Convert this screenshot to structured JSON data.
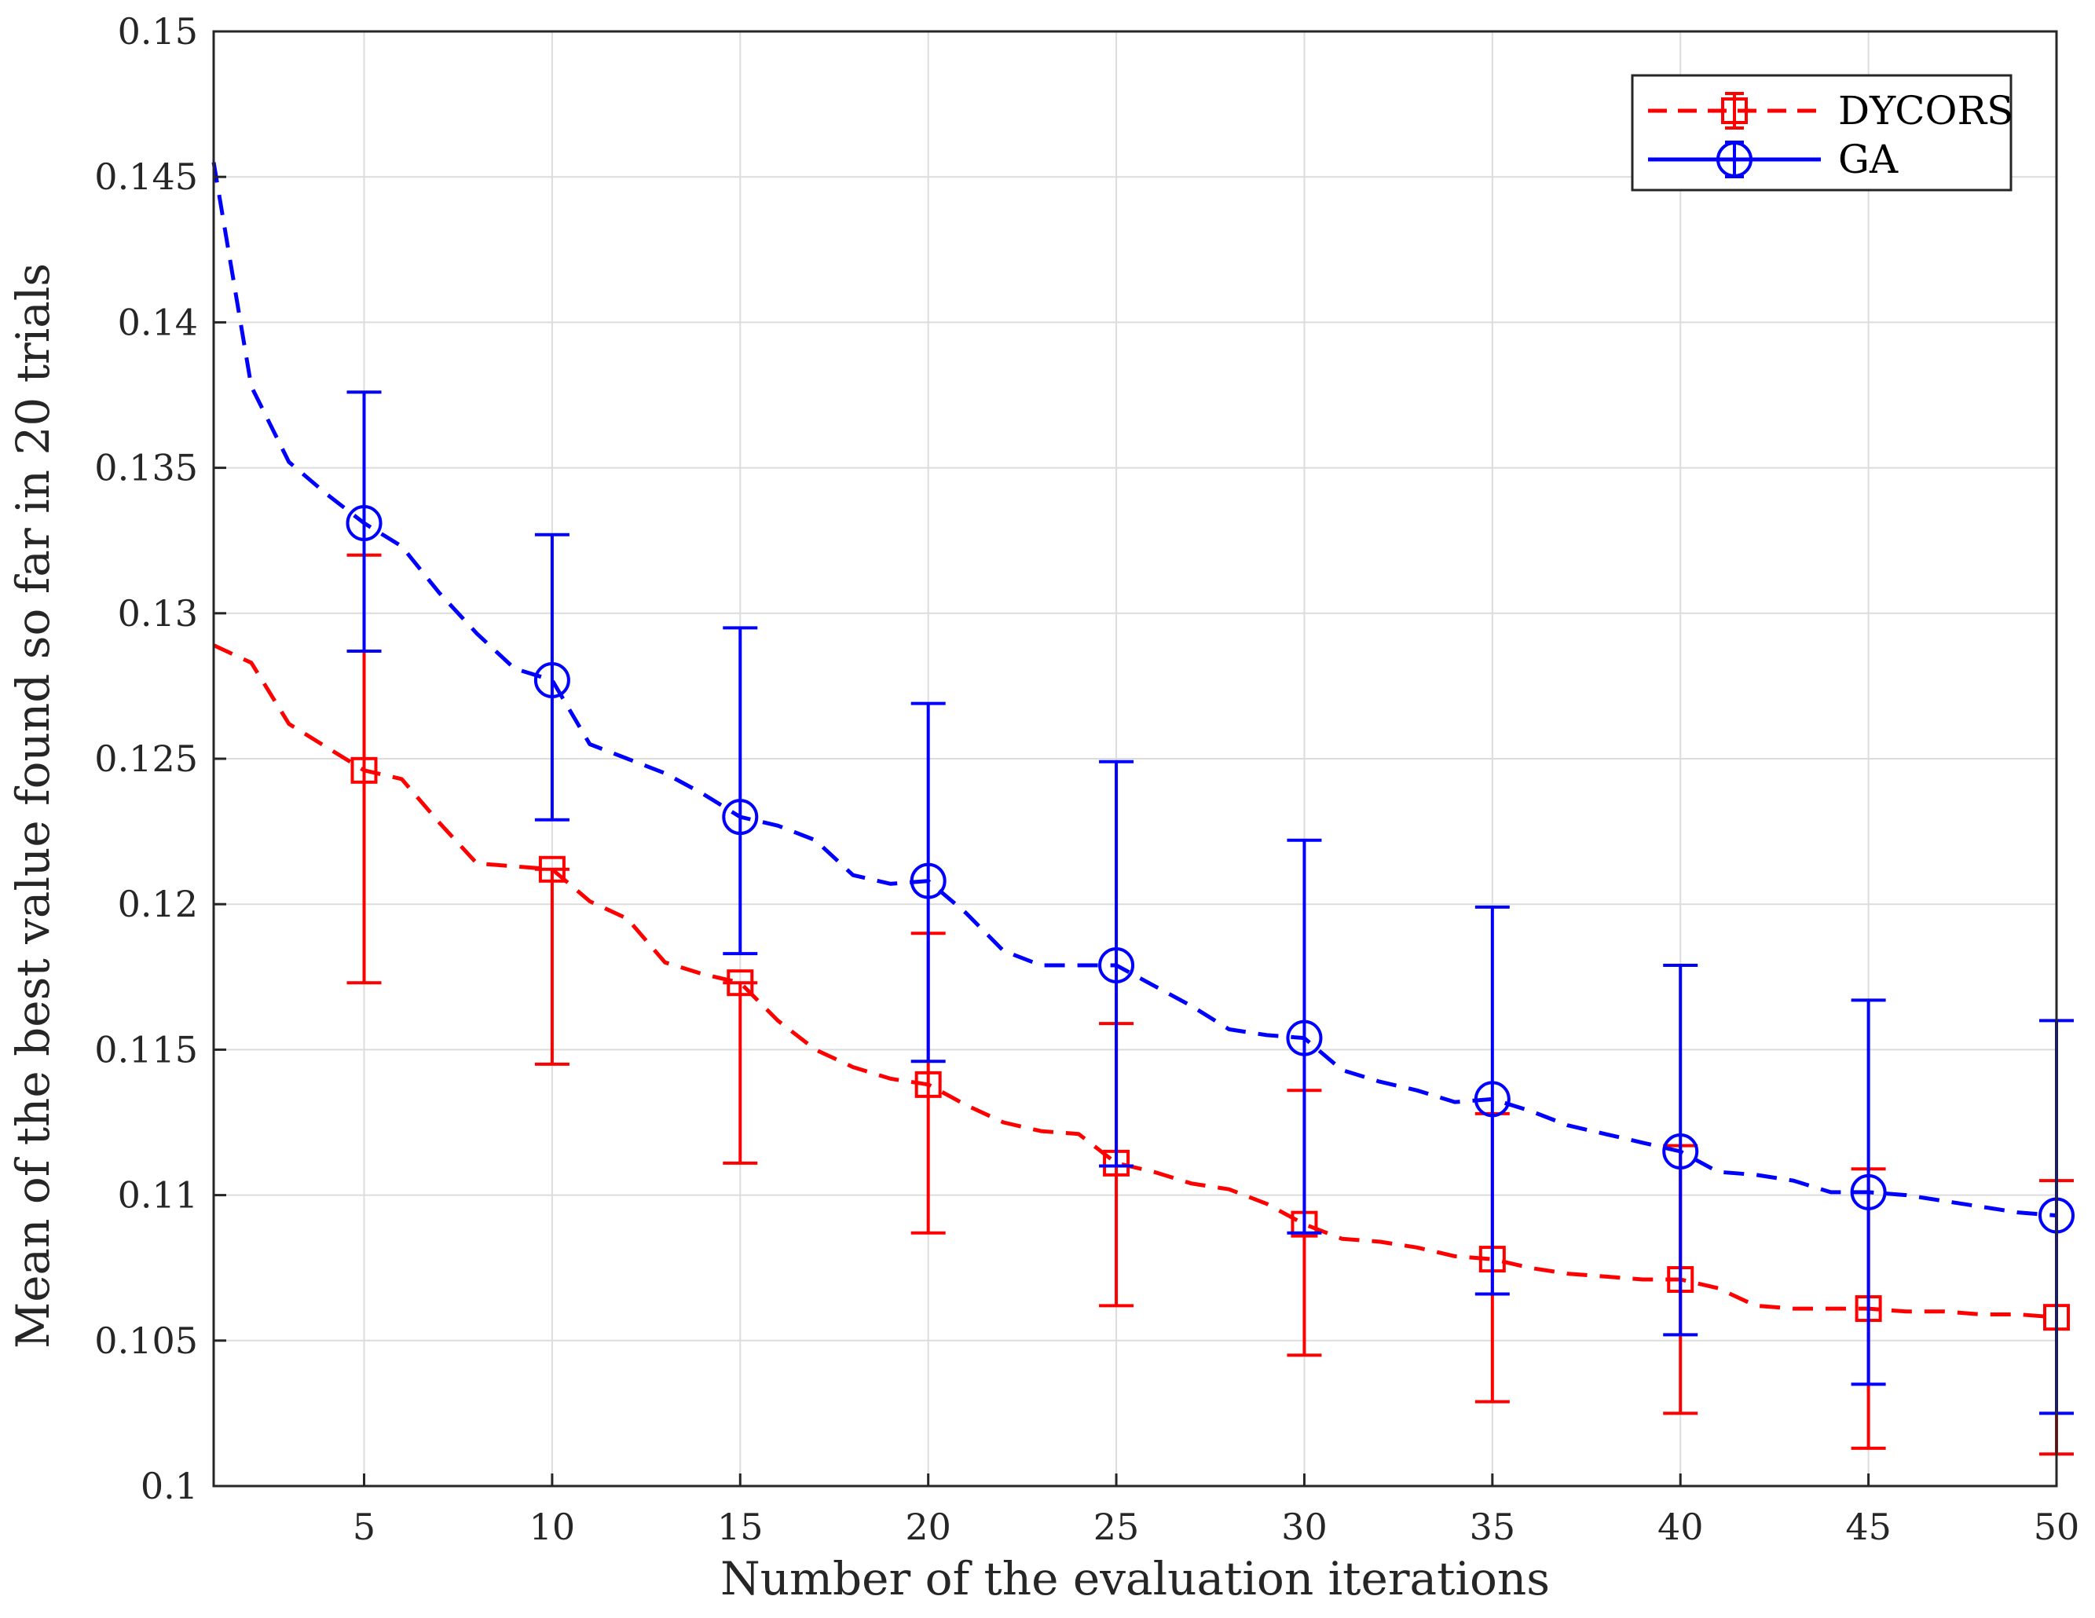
{
  "chart_data": {
    "type": "line",
    "title": "",
    "xlabel": "Number of the evaluation iterations",
    "ylabel": "Mean of the best value found so far in 20 trials",
    "xlim": [
      1,
      50
    ],
    "ylim": [
      0.1,
      0.15
    ],
    "xticks": [
      5,
      10,
      15,
      20,
      25,
      30,
      35,
      40,
      45,
      50
    ],
    "yticks": [
      0.1,
      0.105,
      0.11,
      0.115,
      0.12,
      0.125,
      0.13,
      0.135,
      0.14,
      0.145,
      0.15
    ],
    "ytick_labels": [
      "0.1",
      "0.105",
      "0.11",
      "0.115",
      "0.12",
      "0.125",
      "0.13",
      "0.135",
      "0.14",
      "0.145",
      "0.15"
    ],
    "grid": true,
    "legend_position": "top-right",
    "series": [
      {
        "name": "DYCORS",
        "color": "#ff0000",
        "line_style": "dashed",
        "marker": "square",
        "x": [
          1,
          2,
          3,
          4,
          5,
          6,
          7,
          8,
          9,
          10,
          11,
          12,
          13,
          14,
          15,
          16,
          17,
          18,
          19,
          20,
          21,
          22,
          23,
          24,
          25,
          26,
          27,
          28,
          29,
          30,
          31,
          32,
          33,
          34,
          35,
          36,
          37,
          38,
          39,
          40,
          41,
          42,
          43,
          44,
          45,
          46,
          47,
          48,
          49,
          50
        ],
        "values": [
          0.1289,
          0.1283,
          0.1262,
          0.1254,
          0.1246,
          0.1243,
          0.1228,
          0.1214,
          0.1213,
          0.1212,
          0.1201,
          0.1195,
          0.118,
          0.1176,
          0.1173,
          0.116,
          0.115,
          0.1144,
          0.114,
          0.1138,
          0.1131,
          0.1125,
          0.1122,
          0.1121,
          0.1111,
          0.1108,
          0.1104,
          0.1102,
          0.1097,
          0.109,
          0.1085,
          0.1084,
          0.1082,
          0.1079,
          0.1078,
          0.1075,
          0.1073,
          0.1072,
          0.1071,
          0.1071,
          0.1068,
          0.1062,
          0.1061,
          0.1061,
          0.1061,
          0.106,
          0.106,
          0.1059,
          0.1059,
          0.1058
        ],
        "error_x": [
          5,
          10,
          15,
          20,
          25,
          30,
          35,
          40,
          45,
          50
        ],
        "error_low": [
          0.1173,
          0.1145,
          0.1111,
          0.1087,
          0.1062,
          0.1045,
          0.1029,
          0.1025,
          0.1013,
          0.1011
        ],
        "error_high": [
          0.132,
          0.1212,
          0.1173,
          0.119,
          0.1159,
          0.1136,
          0.1128,
          0.1117,
          0.1109,
          0.1105
        ]
      },
      {
        "name": "GA",
        "color": "#0000ff",
        "line_style": "dashed",
        "marker": "circle",
        "x": [
          1,
          2,
          3,
          4,
          5,
          6,
          7,
          8,
          9,
          10,
          11,
          12,
          13,
          14,
          15,
          16,
          17,
          18,
          19,
          20,
          21,
          22,
          23,
          24,
          25,
          26,
          27,
          28,
          29,
          30,
          31,
          32,
          33,
          34,
          35,
          36,
          37,
          38,
          39,
          40,
          41,
          42,
          43,
          44,
          45,
          46,
          47,
          48,
          49,
          50
        ],
        "values": [
          0.1455,
          0.1378,
          0.1352,
          0.1341,
          0.1331,
          0.1323,
          0.1307,
          0.1293,
          0.1281,
          0.1277,
          0.1255,
          0.125,
          0.1245,
          0.1238,
          0.123,
          0.1227,
          0.1222,
          0.121,
          0.1207,
          0.1208,
          0.1197,
          0.1184,
          0.1179,
          0.1179,
          0.1179,
          0.1172,
          0.1165,
          0.1157,
          0.1155,
          0.1154,
          0.1143,
          0.1139,
          0.1136,
          0.1132,
          0.1133,
          0.1129,
          0.1124,
          0.1121,
          0.1118,
          0.1115,
          0.1108,
          0.1107,
          0.1105,
          0.1101,
          0.1101,
          0.11,
          0.1098,
          0.1096,
          0.1094,
          0.1093
        ],
        "error_x": [
          5,
          10,
          15,
          20,
          25,
          30,
          35,
          40,
          45,
          50
        ],
        "error_low": [
          0.1287,
          0.1229,
          0.1183,
          0.1146,
          0.111,
          0.1087,
          0.1066,
          0.1052,
          0.1035,
          0.1025
        ],
        "error_high": [
          0.1376,
          0.1327,
          0.1295,
          0.1269,
          0.1249,
          0.1222,
          0.1199,
          0.1179,
          0.1167,
          0.116
        ]
      }
    ]
  }
}
